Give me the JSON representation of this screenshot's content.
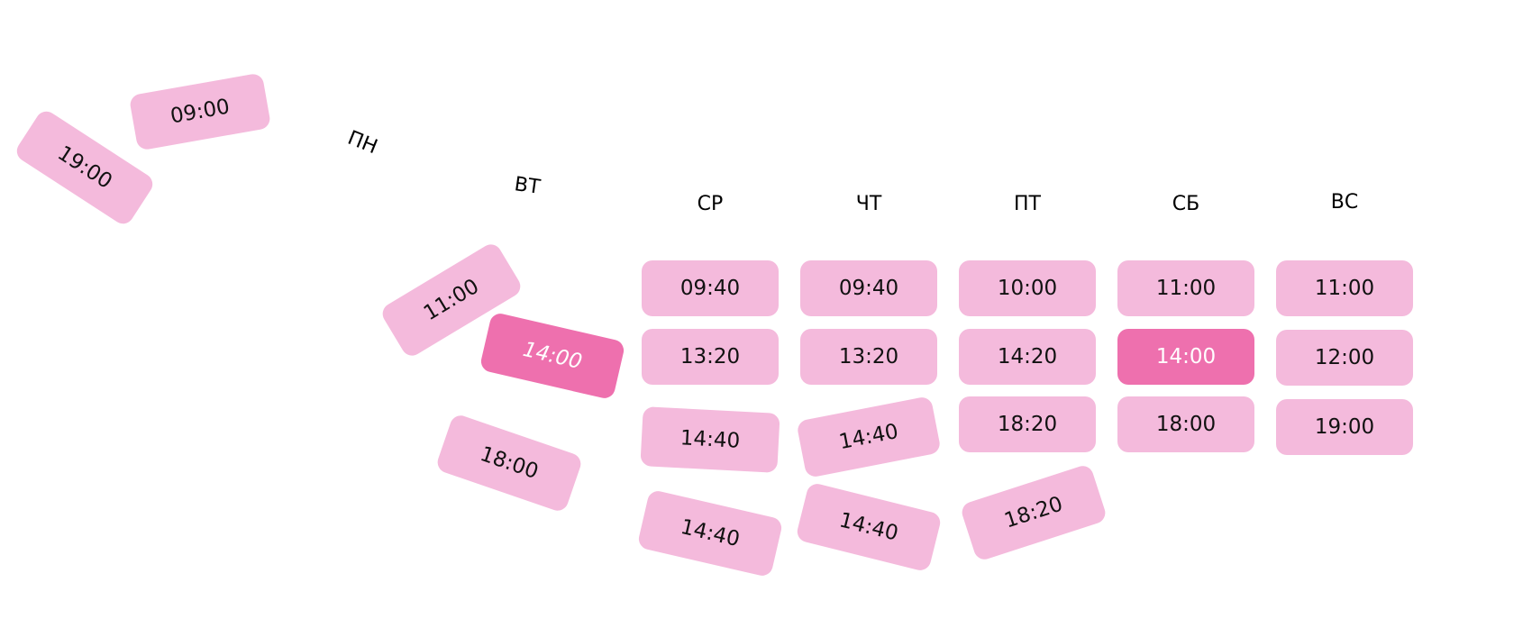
{
  "days": {
    "mon": "ПН",
    "tue": "ВТ",
    "wed": "СР",
    "thu": "ЧТ",
    "fri": "ПТ",
    "sat": "СБ",
    "sun": "ВС"
  },
  "slots": {
    "mon_1": "09:00",
    "mon_2": "19:00",
    "tue_1": "11:00",
    "tue_2": "14:00",
    "tue_3": "18:00",
    "wed_1": "09:40",
    "wed_2": "13:20",
    "wed_3": "14:40",
    "wed_4": "14:40",
    "thu_1": "09:40",
    "thu_2": "13:20",
    "thu_3": "14:40",
    "thu_4": "14:40",
    "fri_1": "10:00",
    "fri_2": "14:20",
    "fri_3": "18:20",
    "fri_4": "18:20",
    "sat_1": "11:00",
    "sat_2": "14:00",
    "sat_3": "18:00",
    "sun_1": "11:00",
    "sun_2": "12:00",
    "sun_3": "19:00"
  },
  "selected_slots": [
    "tue_2",
    "sat_2"
  ],
  "colors": {
    "slot_default": "#f4badc",
    "slot_selected": "#ee70ae",
    "slot_text": "#111111",
    "slot_selected_text": "#ffffff",
    "label_text": "#000000"
  }
}
